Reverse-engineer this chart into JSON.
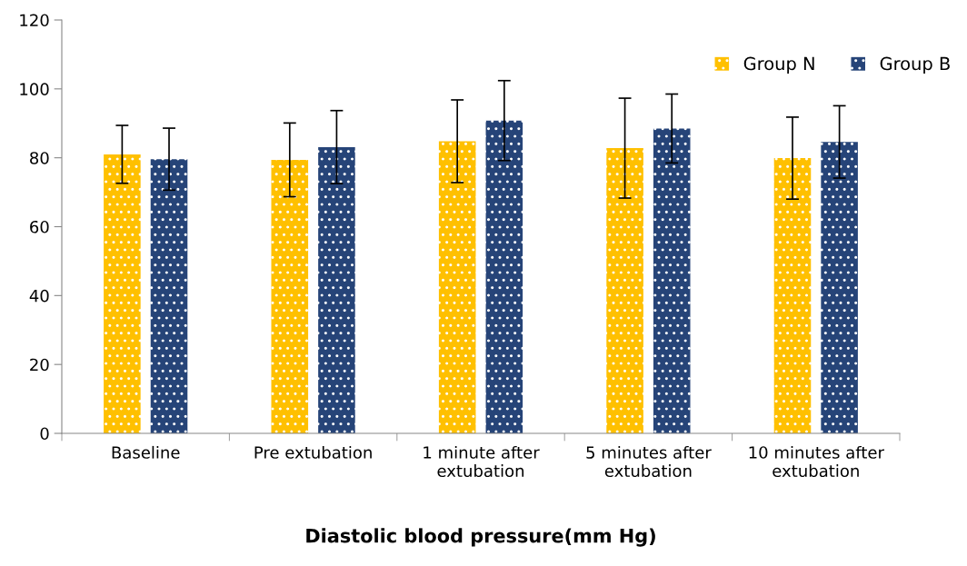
{
  "chart_data": {
    "type": "bar",
    "xlabel": "Diastolic blood pressure(mm Hg)",
    "categories": [
      "Baseline",
      "Pre extubation",
      "1 minute after\nextubation",
      "5 minutes after\nextubation",
      "10 minutes after\nextubation"
    ],
    "series": [
      {
        "name": "Group N",
        "color": "#ffc000",
        "values": [
          81.0,
          79.4,
          84.8,
          82.8,
          79.9
        ],
        "errors": [
          8.4,
          10.7,
          12.0,
          14.5,
          11.9
        ]
      },
      {
        "name": "Group B",
        "color": "#264478",
        "values": [
          79.6,
          83.1,
          90.8,
          88.5,
          84.6
        ],
        "errors": [
          9.0,
          10.6,
          11.6,
          10.0,
          10.5
        ]
      }
    ],
    "ylim": [
      0,
      120
    ],
    "yticks": [
      0,
      20,
      40,
      60,
      80,
      100,
      120
    ],
    "grid": false,
    "legend": "top right"
  }
}
